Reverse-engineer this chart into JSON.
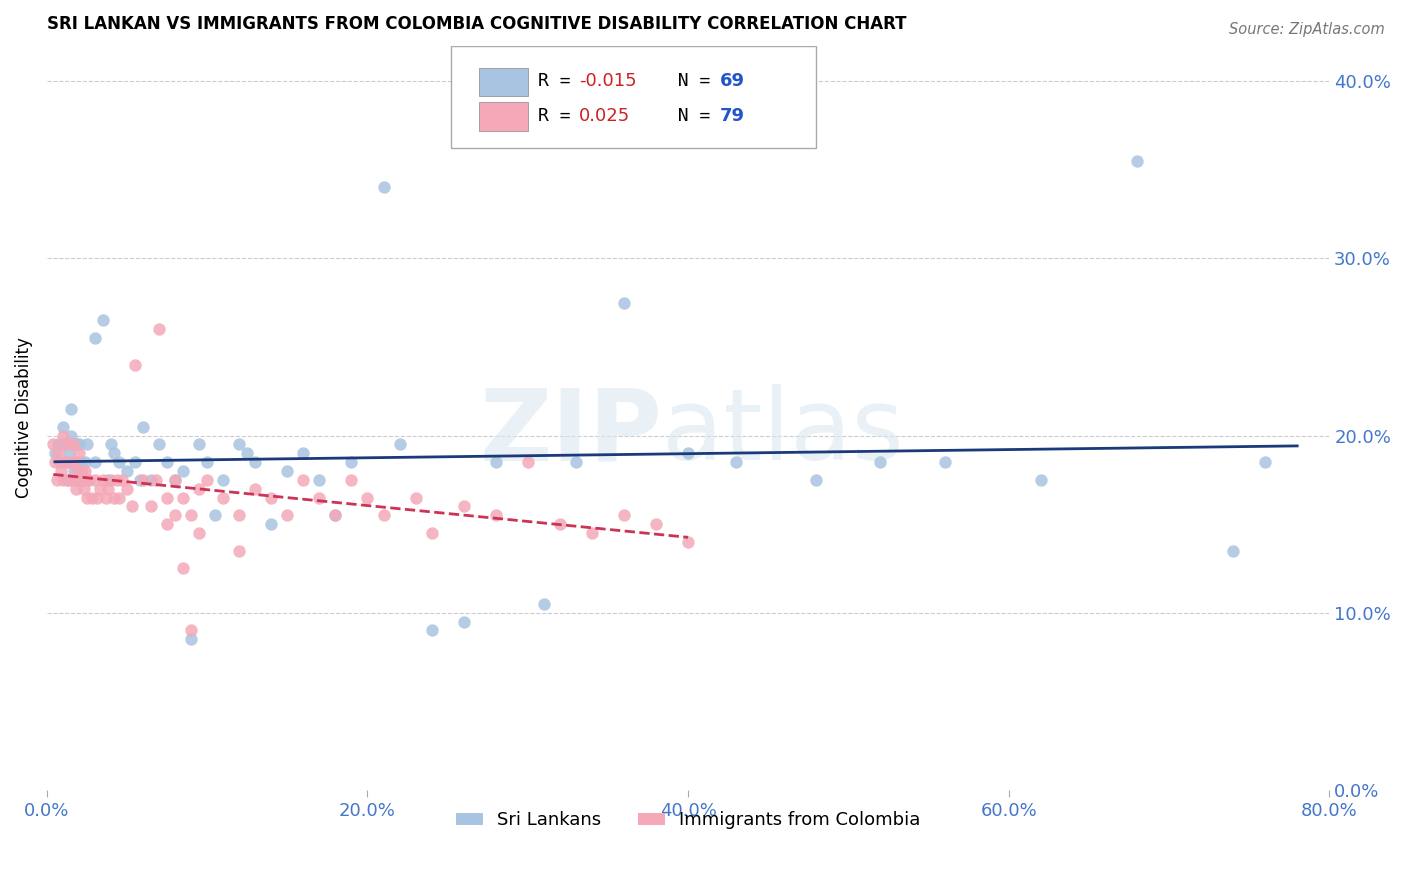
{
  "title": "SRI LANKAN VS IMMIGRANTS FROM COLOMBIA COGNITIVE DISABILITY CORRELATION CHART",
  "source": "Source: ZipAtlas.com",
  "ylabel": "Cognitive Disability",
  "xlabel": "",
  "xlim": [
    0.0,
    0.8
  ],
  "ylim": [
    0.0,
    0.42
  ],
  "yticks": [
    0.0,
    0.1,
    0.2,
    0.3,
    0.4
  ],
  "xticks": [
    0.0,
    0.2,
    0.4,
    0.6,
    0.8
  ],
  "xtick_labels": [
    "0.0%",
    "20.0%",
    "40.0%",
    "60.0%",
    "80.0%"
  ],
  "ytick_labels": [
    "0.0%",
    "10.0%",
    "20.0%",
    "30.0%",
    "40.0%"
  ],
  "blue_R": "-0.015",
  "blue_N": "69",
  "pink_R": "0.025",
  "pink_N": "79",
  "blue_color": "#a8c4e0",
  "pink_color": "#f4a8b8",
  "blue_line_color": "#1a3a7a",
  "pink_line_color": "#cc3355",
  "legend_label_blue": "Sri Lankans",
  "legend_label_pink": "Immigrants from Colombia",
  "blue_scatter_x": [
    0.005,
    0.007,
    0.008,
    0.01,
    0.01,
    0.012,
    0.013,
    0.014,
    0.015,
    0.015,
    0.016,
    0.017,
    0.018,
    0.018,
    0.019,
    0.02,
    0.021,
    0.022,
    0.023,
    0.024,
    0.025,
    0.025,
    0.03,
    0.03,
    0.035,
    0.038,
    0.04,
    0.042,
    0.045,
    0.05,
    0.055,
    0.058,
    0.06,
    0.065,
    0.07,
    0.075,
    0.08,
    0.085,
    0.09,
    0.095,
    0.1,
    0.105,
    0.11,
    0.12,
    0.125,
    0.13,
    0.14,
    0.15,
    0.16,
    0.17,
    0.18,
    0.19,
    0.21,
    0.22,
    0.24,
    0.26,
    0.28,
    0.31,
    0.33,
    0.36,
    0.4,
    0.43,
    0.48,
    0.52,
    0.56,
    0.62,
    0.68,
    0.74,
    0.76
  ],
  "blue_scatter_y": [
    0.19,
    0.195,
    0.185,
    0.195,
    0.205,
    0.185,
    0.175,
    0.19,
    0.2,
    0.215,
    0.195,
    0.18,
    0.175,
    0.185,
    0.195,
    0.195,
    0.185,
    0.175,
    0.175,
    0.185,
    0.195,
    0.175,
    0.255,
    0.185,
    0.265,
    0.175,
    0.195,
    0.19,
    0.185,
    0.18,
    0.185,
    0.175,
    0.205,
    0.175,
    0.195,
    0.185,
    0.175,
    0.18,
    0.085,
    0.195,
    0.185,
    0.155,
    0.175,
    0.195,
    0.19,
    0.185,
    0.15,
    0.18,
    0.19,
    0.175,
    0.155,
    0.185,
    0.34,
    0.195,
    0.09,
    0.095,
    0.185,
    0.105,
    0.185,
    0.275,
    0.19,
    0.185,
    0.175,
    0.185,
    0.185,
    0.175,
    0.355,
    0.135,
    0.185
  ],
  "pink_scatter_x": [
    0.004,
    0.005,
    0.006,
    0.007,
    0.008,
    0.009,
    0.01,
    0.01,
    0.011,
    0.012,
    0.013,
    0.014,
    0.015,
    0.015,
    0.016,
    0.017,
    0.018,
    0.018,
    0.019,
    0.02,
    0.021,
    0.022,
    0.023,
    0.024,
    0.025,
    0.025,
    0.026,
    0.028,
    0.03,
    0.031,
    0.033,
    0.035,
    0.037,
    0.038,
    0.04,
    0.042,
    0.044,
    0.045,
    0.047,
    0.05,
    0.053,
    0.055,
    0.06,
    0.065,
    0.068,
    0.07,
    0.075,
    0.08,
    0.085,
    0.09,
    0.095,
    0.1,
    0.11,
    0.12,
    0.13,
    0.14,
    0.15,
    0.16,
    0.17,
    0.18,
    0.19,
    0.2,
    0.21,
    0.23,
    0.24,
    0.26,
    0.28,
    0.3,
    0.32,
    0.34,
    0.36,
    0.38,
    0.4,
    0.095,
    0.12,
    0.09,
    0.085,
    0.08,
    0.075
  ],
  "pink_scatter_y": [
    0.195,
    0.185,
    0.175,
    0.19,
    0.185,
    0.18,
    0.2,
    0.175,
    0.195,
    0.185,
    0.175,
    0.185,
    0.195,
    0.175,
    0.195,
    0.185,
    0.175,
    0.17,
    0.18,
    0.19,
    0.175,
    0.18,
    0.17,
    0.18,
    0.175,
    0.165,
    0.175,
    0.165,
    0.175,
    0.165,
    0.17,
    0.175,
    0.165,
    0.17,
    0.175,
    0.165,
    0.175,
    0.165,
    0.175,
    0.17,
    0.16,
    0.24,
    0.175,
    0.16,
    0.175,
    0.26,
    0.165,
    0.175,
    0.165,
    0.155,
    0.17,
    0.175,
    0.165,
    0.155,
    0.17,
    0.165,
    0.155,
    0.175,
    0.165,
    0.155,
    0.175,
    0.165,
    0.155,
    0.165,
    0.145,
    0.16,
    0.155,
    0.185,
    0.15,
    0.145,
    0.155,
    0.15,
    0.14,
    0.145,
    0.135,
    0.09,
    0.125,
    0.155,
    0.15
  ],
  "pink_line_x_end": 0.4,
  "blue_line_x_start": 0.005,
  "blue_line_x_end": 0.78
}
